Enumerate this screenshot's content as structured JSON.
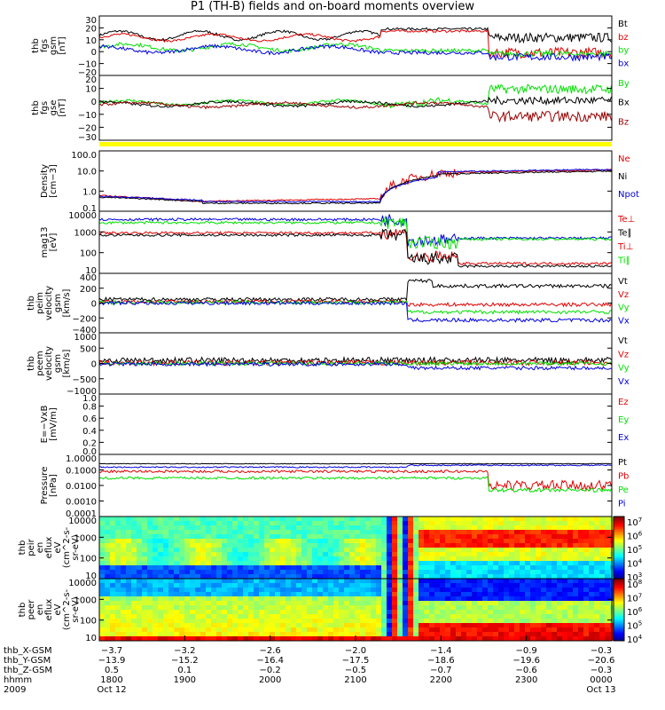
{
  "title": "P1 (TH-B) fields and on-board moments overview",
  "colors": {
    "black": "#000000",
    "red": "#e00000",
    "green": "#00e000",
    "blue": "#0000e0",
    "darkred": "#9a0000",
    "yellow": "#ffff00"
  },
  "chart_data": [
    {
      "type": "line",
      "panel": "fgs_gsm",
      "ylabel": [
        "thb",
        "fgs",
        "gsm",
        "[nT]"
      ],
      "yticks": [
        "30",
        "20",
        "10",
        "0",
        "−10",
        "−20"
      ],
      "legend": [
        {
          "name": "Bt",
          "color": "black"
        },
        {
          "name": "bz",
          "color": "red"
        },
        {
          "name": "by",
          "color": "green"
        },
        {
          "name": "bx",
          "color": "blue"
        }
      ]
    },
    {
      "type": "line",
      "panel": "fgs_gse",
      "ylabel": [
        "thb",
        "fgs",
        "gse",
        "[nT]"
      ],
      "yticks": [
        "20",
        "10",
        "0",
        "−10",
        "−20",
        "−30"
      ],
      "legend": [
        {
          "name": "By",
          "color": "green"
        },
        {
          "name": "Bx",
          "color": "black"
        },
        {
          "name": "Bz",
          "color": "darkred"
        }
      ]
    },
    {
      "type": "line",
      "panel": "density",
      "ylabel": [
        "Density",
        "[cm−3]"
      ],
      "yticks": [
        "100.0",
        "10.0",
        "1.0",
        "0.1"
      ],
      "log": true,
      "legend": [
        {
          "name": "Ne",
          "color": "red"
        },
        {
          "name": "Ni",
          "color": "black"
        },
        {
          "name": "Npot",
          "color": "blue"
        }
      ]
    },
    {
      "type": "line",
      "panel": "temperature",
      "ylabel": [
        "mag13",
        "[eV]"
      ],
      "yticks": [
        "10000",
        "1000",
        "100",
        "10"
      ],
      "log": true,
      "legend": [
        {
          "name": "Te⊥",
          "color": "red"
        },
        {
          "name": "Te∥",
          "color": "black"
        },
        {
          "name": "Ti⊥",
          "color": "red"
        },
        {
          "name": "Ti∥",
          "color": "green"
        }
      ]
    },
    {
      "type": "line",
      "panel": "ion_velocity",
      "ylabel": [
        "thb",
        "peim",
        "velocity",
        "gsm",
        "[km/s]"
      ],
      "yticks": [
        "400",
        "200",
        "0",
        "−200",
        "−400"
      ],
      "legend": [
        {
          "name": "Vt",
          "color": "black"
        },
        {
          "name": "Vz",
          "color": "red"
        },
        {
          "name": "Vy",
          "color": "green"
        },
        {
          "name": "Vx",
          "color": "blue"
        }
      ]
    },
    {
      "type": "line",
      "panel": "electron_velocity",
      "ylabel": [
        "thb",
        "peem",
        "velocity",
        "gsm",
        "[km/s]"
      ],
      "yticks": [
        "1000",
        "500",
        "0",
        "−500",
        "−1000"
      ],
      "legend": [
        {
          "name": "Vt",
          "color": "black"
        },
        {
          "name": "Vz",
          "color": "red"
        },
        {
          "name": "Vy",
          "color": "green"
        },
        {
          "name": "Vx",
          "color": "blue"
        }
      ]
    },
    {
      "type": "line",
      "panel": "efield",
      "ylabel": [
        "E=−VxB",
        "[mV/m]"
      ],
      "yticks": [
        "1.0",
        "0.8",
        "0.6",
        "0.4",
        "0.2",
        "0.0"
      ],
      "legend": [
        {
          "name": "Ez",
          "color": "red"
        },
        {
          "name": "Ey",
          "color": "green"
        },
        {
          "name": "Ex",
          "color": "blue"
        }
      ]
    },
    {
      "type": "line",
      "panel": "pressure",
      "ylabel": [
        "Pressure",
        "[nPa]"
      ],
      "yticks": [
        "1.0000",
        "0.1000",
        "0.0100",
        "0.0010",
        "0.0001"
      ],
      "log": true,
      "legend": [
        {
          "name": "Pt",
          "color": "black"
        },
        {
          "name": "Pb",
          "color": "red"
        },
        {
          "name": "Pe",
          "color": "green"
        },
        {
          "name": "Pi",
          "color": "blue"
        }
      ]
    },
    {
      "type": "heatmap",
      "panel": "ion_spectrogram",
      "ylabel": [
        "thb",
        "peir",
        "en",
        "eflux",
        "eV",
        "(cm^2-s-",
        "sr-eV)"
      ],
      "yticks": [
        "10000",
        "1000",
        "100",
        "10"
      ],
      "colorbar": [
        "10^7",
        "10^6",
        "10^5",
        "10^4",
        "10^3"
      ]
    },
    {
      "type": "heatmap",
      "panel": "electron_spectrogram",
      "ylabel": [
        "thb",
        "peer",
        "en",
        "eflux",
        "eV",
        "(cm^2-s-",
        "sr-eV)"
      ],
      "yticks": [
        "10000",
        "1000",
        "100",
        "10"
      ],
      "colorbar": [
        "10^8",
        "10^7",
        "10^6",
        "10^5",
        "10^4"
      ]
    }
  ],
  "footer": {
    "rows": [
      {
        "label": "thb_X-GSM",
        "values": [
          "−3.7",
          "−3.2",
          "−2.6",
          "−2.0",
          "−1.4",
          "−0.9",
          "−0.3"
        ]
      },
      {
        "label": "thb_Y-GSM",
        "values": [
          "−13.9",
          "−15.2",
          "−16.4",
          "−17.5",
          "−18.6",
          "−19.6",
          "−20.6"
        ]
      },
      {
        "label": "thb_Z-GSM",
        "values": [
          "0.5",
          "0.1",
          "−0.2",
          "−0.5",
          "−0.7",
          "−0.6",
          "−0.3"
        ]
      },
      {
        "label": "hhmm",
        "values": [
          "1800",
          "1900",
          "2000",
          "2100",
          "2200",
          "2300",
          "0000"
        ]
      },
      {
        "label": "2009",
        "values": [
          "Oct 12",
          "",
          "",
          "",
          "",
          "",
          "Oct 13"
        ]
      }
    ]
  }
}
